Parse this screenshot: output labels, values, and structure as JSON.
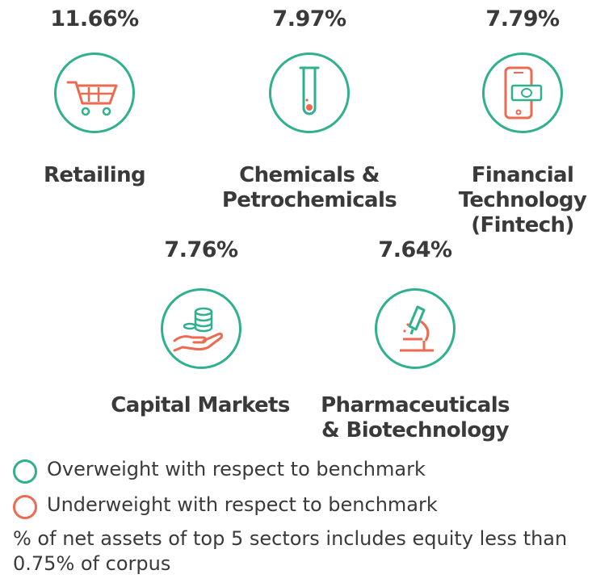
{
  "chart_data": {
    "type": "table",
    "categories": [
      "Retailing",
      "Chemicals & Petrochemicals",
      "Financial Technology (Fintech)",
      "Capital Markets",
      "Pharmaceuticals & Biotechnology"
    ],
    "values": [
      11.66,
      7.97,
      7.79,
      7.76,
      7.64
    ],
    "sectors": [
      {
        "label": "Retailing",
        "value_text": "11.66%",
        "value": 11.66,
        "icon": "shopping-cart-icon",
        "status": "overweight"
      },
      {
        "label": "Chemicals &\nPetrochemicals",
        "value_text": "7.97%",
        "value": 7.97,
        "icon": "test-tube-icon",
        "status": "overweight"
      },
      {
        "label": "Financial\nTechnology\n(Fintech)",
        "value_text": "7.79%",
        "value": 7.79,
        "icon": "mobile-payment-icon",
        "status": "overweight"
      },
      {
        "label": "Capital Markets",
        "value_text": "7.76%",
        "value": 7.76,
        "icon": "hand-coins-icon",
        "status": "overweight"
      },
      {
        "label": "Pharmaceuticals\n& Biotechnology",
        "value_text": "7.64%",
        "value": 7.64,
        "icon": "microscope-icon",
        "status": "overweight"
      }
    ]
  },
  "legend": {
    "overweight": {
      "label": "Overweight with respect to benchmark",
      "color": "#2fb08e"
    },
    "underweight": {
      "label": "Underweight with respect to benchmark",
      "color": "#ec6a4f"
    }
  },
  "note": "% of net assets of top 5 sectors includes equity less than 0.75% of corpus"
}
